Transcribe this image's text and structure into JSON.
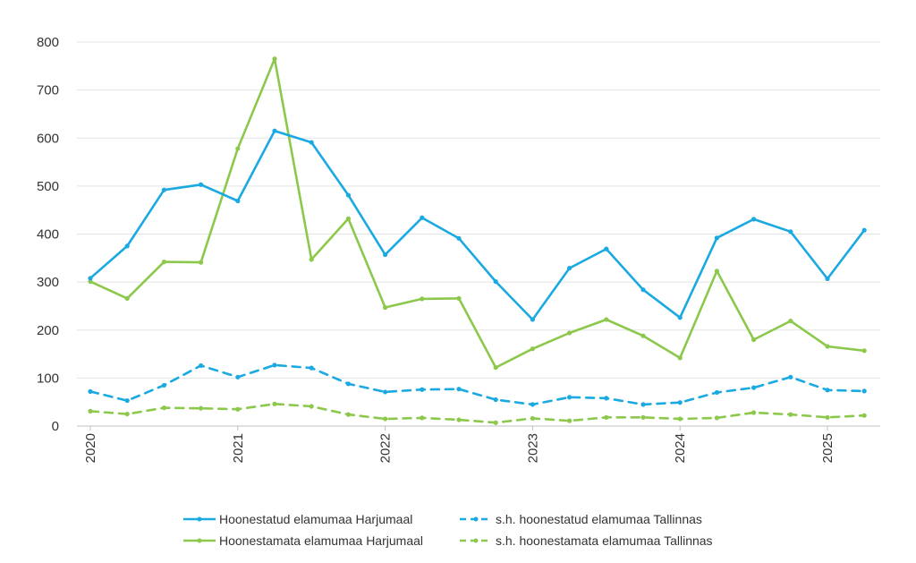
{
  "chart_data": {
    "type": "line",
    "title": "",
    "xlabel": "",
    "ylabel": "",
    "ylim": [
      0,
      800
    ],
    "yticks": [
      0,
      100,
      200,
      300,
      400,
      500,
      600,
      700,
      800
    ],
    "xticks": [
      "2020",
      "2021",
      "2022",
      "2023",
      "2024",
      "2025"
    ],
    "grid": "horizontal",
    "legend_position": "bottom",
    "x": [
      "2020 Q1",
      "2020 Q2",
      "2020 Q3",
      "2020 Q4",
      "2021 Q1",
      "2021 Q2",
      "2021 Q3",
      "2021 Q4",
      "2022 Q1",
      "2022 Q2",
      "2022 Q3",
      "2022 Q4",
      "2023 Q1",
      "2023 Q2",
      "2023 Q3",
      "2023 Q4",
      "2024 Q1",
      "2024 Q2",
      "2024 Q3",
      "2024 Q4",
      "2025 Q1",
      "2025 Q2"
    ],
    "series": [
      {
        "name": "Hoonestatud elamumaa Harjumaal",
        "color": "#1aa9e1",
        "dashed": false,
        "values": [
          308,
          375,
          492,
          503,
          469,
          615,
          591,
          481,
          357,
          434,
          391,
          301,
          222,
          329,
          369,
          284,
          226,
          392,
          431,
          405,
          307,
          408
        ]
      },
      {
        "name": "s.h. hoonestatud elamumaa Tallinnas",
        "color": "#1aa9e1",
        "dashed": true,
        "values": [
          72,
          53,
          85,
          126,
          102,
          127,
          121,
          88,
          71,
          76,
          77,
          55,
          45,
          60,
          58,
          45,
          49,
          70,
          80,
          102,
          75,
          73
        ]
      },
      {
        "name": "Hoonestamata elamumaa Harjumaal",
        "color": "#8cc84b",
        "dashed": false,
        "values": [
          301,
          266,
          342,
          341,
          578,
          765,
          347,
          432,
          247,
          265,
          266,
          122,
          161,
          194,
          222,
          188,
          142,
          323,
          180,
          219,
          166,
          157
        ]
      },
      {
        "name": "s.h. hoonestamata elamumaa Tallinnas",
        "color": "#8cc84b",
        "dashed": true,
        "values": [
          31,
          25,
          38,
          37,
          35,
          46,
          41,
          24,
          15,
          17,
          13,
          7,
          16,
          11,
          18,
          18,
          15,
          17,
          28,
          24,
          18,
          22
        ]
      }
    ]
  }
}
